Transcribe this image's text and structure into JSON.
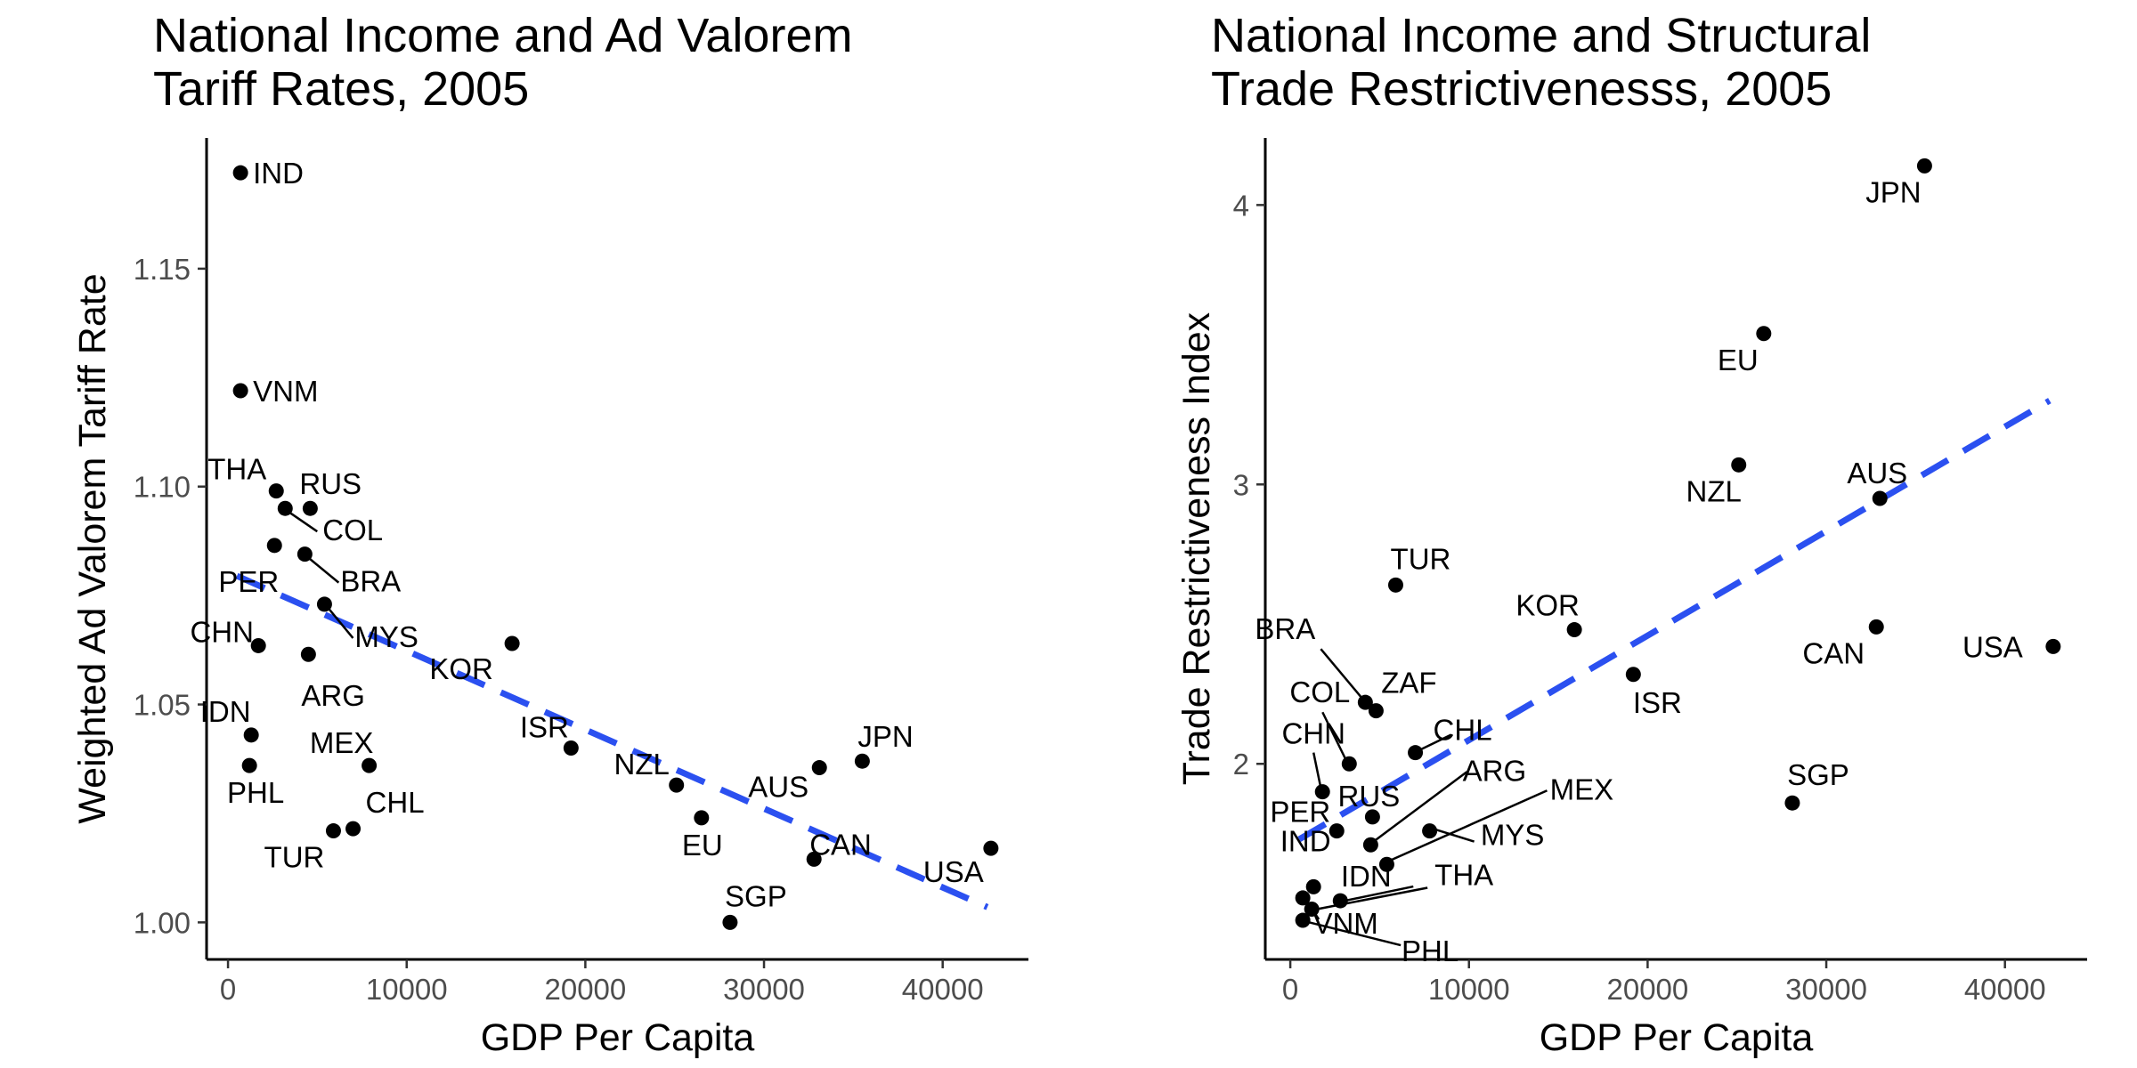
{
  "chart_data": [
    {
      "type": "scatter",
      "title": [
        "National Income and Ad Valorem",
        " Tariff Rates, 2005"
      ],
      "xlabel": "GDP Per Capita",
      "ylabel": "Weighted Ad Valorem Tariff Rate",
      "xlim": [
        -1200,
        44800
      ],
      "ylim": [
        0.9915,
        1.18
      ],
      "xticks": [
        0,
        10000,
        20000,
        30000,
        40000
      ],
      "xtick_labels": [
        "0",
        "10000",
        "20000",
        "30000",
        "40000"
      ],
      "yticks": [
        1.0,
        1.05,
        1.1,
        1.15
      ],
      "ytick_labels": [
        "1.00",
        "1.05",
        "1.10",
        "1.15"
      ],
      "grid": false,
      "legend": "none",
      "trend": {
        "style": "dashed",
        "color": "#2b50f0",
        "x": [
          500,
          42500
        ],
        "y": [
          1.0795,
          1.0035
        ]
      },
      "points": [
        {
          "label": "IND",
          "x": 700,
          "y": 1.172
        },
        {
          "label": "VNM",
          "x": 700,
          "y": 1.122
        },
        {
          "label": "THA",
          "x": 2700,
          "y": 1.099
        },
        {
          "label": "RUS",
          "x": 4600,
          "y": 1.095
        },
        {
          "label": "COL",
          "x": 3200,
          "y": 1.095
        },
        {
          "label": "PER",
          "x": 2600,
          "y": 1.0865
        },
        {
          "label": "BRA",
          "x": 4300,
          "y": 1.0845
        },
        {
          "label": "MYS",
          "x": 5400,
          "y": 1.073
        },
        {
          "label": "CHN",
          "x": 1700,
          "y": 1.0635
        },
        {
          "label": "ARG",
          "x": 4500,
          "y": 1.0615
        },
        {
          "label": "KOR",
          "x": 15900,
          "y": 1.064
        },
        {
          "label": "IDN",
          "x": 1300,
          "y": 1.043
        },
        {
          "label": "ISR",
          "x": 19200,
          "y": 1.04
        },
        {
          "label": "MEX",
          "x": 7900,
          "y": 1.036
        },
        {
          "label": "PHL",
          "x": 1200,
          "y": 1.036
        },
        {
          "label": "JPN",
          "x": 35500,
          "y": 1.037
        },
        {
          "label": "AUS",
          "x": 33100,
          "y": 1.0355
        },
        {
          "label": "NZL",
          "x": 25100,
          "y": 1.0315
        },
        {
          "label": "EU",
          "x": 26500,
          "y": 1.024
        },
        {
          "label": "CHL",
          "x": 7000,
          "y": 1.0215
        },
        {
          "label": "TUR",
          "x": 5900,
          "y": 1.021
        },
        {
          "label": "USA",
          "x": 42700,
          "y": 1.017
        },
        {
          "label": "CAN",
          "x": 32800,
          "y": 1.0145
        },
        {
          "label": "SGP",
          "x": 28100,
          "y": 1.0
        }
      ]
    },
    {
      "type": "scatter",
      "title": [
        "National Income and Structural",
        " Trade Restrictivenesss, 2005"
      ],
      "xlabel": "GDP Per Capita",
      "ylabel": "Trade Restrictiveness Index",
      "xlim": [
        -1400,
        44600
      ],
      "ylim": [
        1.3,
        4.24
      ],
      "xticks": [
        0,
        10000,
        20000,
        30000,
        40000
      ],
      "xtick_labels": [
        "0",
        "10000",
        "20000",
        "30000",
        "40000"
      ],
      "yticks": [
        2,
        3,
        4
      ],
      "ytick_labels": [
        "2",
        "3",
        "4"
      ],
      "grid": false,
      "legend": "none",
      "trend": {
        "style": "dashed",
        "color": "#2b50f0",
        "x": [
          500,
          42500
        ],
        "y": [
          1.73,
          3.3
        ]
      },
      "points": [
        {
          "label": "JPN",
          "x": 35500,
          "y": 4.14
        },
        {
          "label": "EU",
          "x": 26500,
          "y": 3.54
        },
        {
          "label": "NZL",
          "x": 25100,
          "y": 3.07
        },
        {
          "label": "AUS",
          "x": 33000,
          "y": 2.95
        },
        {
          "label": "TUR",
          "x": 5900,
          "y": 2.64
        },
        {
          "label": "KOR",
          "x": 15900,
          "y": 2.48
        },
        {
          "label": "CAN",
          "x": 32800,
          "y": 2.49
        },
        {
          "label": "USA",
          "x": 42700,
          "y": 2.42
        },
        {
          "label": "ISR",
          "x": 19200,
          "y": 2.32
        },
        {
          "label": "BRA",
          "x": 4200,
          "y": 2.22
        },
        {
          "label": "ZAF",
          "x": 4800,
          "y": 2.19
        },
        {
          "label": "CHL",
          "x": 7000,
          "y": 2.04
        },
        {
          "label": "COL",
          "x": 3300,
          "y": 2.0
        },
        {
          "label": "CHN",
          "x": 1800,
          "y": 1.9
        },
        {
          "label": "SGP",
          "x": 28100,
          "y": 1.86
        },
        {
          "label": "RUS",
          "x": 4600,
          "y": 1.81
        },
        {
          "label": "MYS",
          "x": 7800,
          "y": 1.76
        },
        {
          "label": "PER",
          "x": 2600,
          "y": 1.76
        },
        {
          "label": "ARG",
          "x": 4500,
          "y": 1.71
        },
        {
          "label": "MEX",
          "x": 5400,
          "y": 1.64
        },
        {
          "label": "IND",
          "x": 1300,
          "y": 1.56
        },
        {
          "label": "IDN",
          "x": 2800,
          "y": 1.51
        },
        {
          "label": "VNM",
          "x": 700,
          "y": 1.52
        },
        {
          "label": "THA",
          "x": 1200,
          "y": 1.48
        },
        {
          "label": "PHL",
          "x": 700,
          "y": 1.44
        }
      ]
    }
  ]
}
